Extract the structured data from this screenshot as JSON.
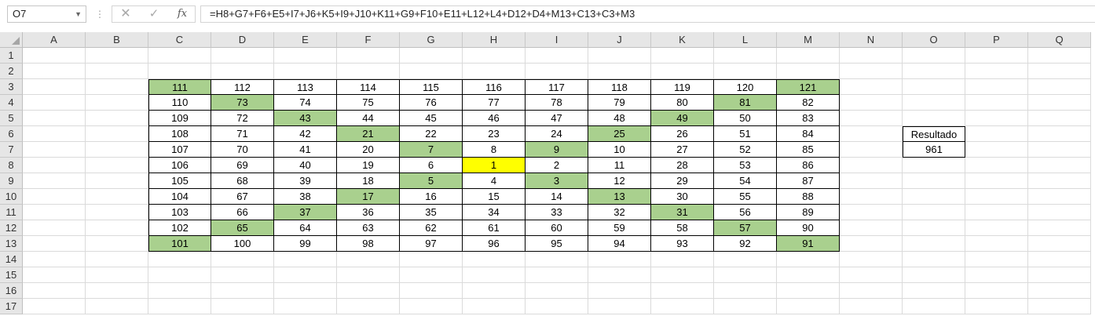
{
  "formula_bar": {
    "name_box": "O7",
    "cancel_glyph": "✕",
    "enter_glyph": "✓",
    "fx_label": "fx",
    "formula": "=H8+G7+F6+E5+I7+J6+K5+I9+J10+K11+G9+F10+E11+L12+L4+D12+D4+M13+C13+C3+M3"
  },
  "columns": [
    "A",
    "B",
    "C",
    "D",
    "E",
    "F",
    "G",
    "H",
    "I",
    "J",
    "K",
    "L",
    "M",
    "N",
    "O",
    "P",
    "Q"
  ],
  "rows": [
    "1",
    "2",
    "3",
    "4",
    "5",
    "6",
    "7",
    "8",
    "9",
    "10",
    "11",
    "12",
    "13",
    "14",
    "15",
    "16",
    "17"
  ],
  "table": {
    "rows": [
      [
        "111",
        "112",
        "113",
        "114",
        "115",
        "116",
        "117",
        "118",
        "119",
        "120",
        "121"
      ],
      [
        "110",
        "73",
        "74",
        "75",
        "76",
        "77",
        "78",
        "79",
        "80",
        "81",
        "82"
      ],
      [
        "109",
        "72",
        "43",
        "44",
        "45",
        "46",
        "47",
        "48",
        "49",
        "50",
        "83"
      ],
      [
        "108",
        "71",
        "42",
        "21",
        "22",
        "23",
        "24",
        "25",
        "26",
        "51",
        "84"
      ],
      [
        "107",
        "70",
        "41",
        "20",
        "7",
        "8",
        "9",
        "10",
        "27",
        "52",
        "85"
      ],
      [
        "106",
        "69",
        "40",
        "19",
        "6",
        "1",
        "2",
        "11",
        "28",
        "53",
        "86"
      ],
      [
        "105",
        "68",
        "39",
        "18",
        "5",
        "4",
        "3",
        "12",
        "29",
        "54",
        "87"
      ],
      [
        "104",
        "67",
        "38",
        "17",
        "16",
        "15",
        "14",
        "13",
        "30",
        "55",
        "88"
      ],
      [
        "103",
        "66",
        "37",
        "36",
        "35",
        "34",
        "33",
        "32",
        "31",
        "56",
        "89"
      ],
      [
        "102",
        "65",
        "64",
        "63",
        "62",
        "61",
        "60",
        "59",
        "58",
        "57",
        "90"
      ],
      [
        "101",
        "100",
        "99",
        "98",
        "97",
        "96",
        "95",
        "94",
        "93",
        "92",
        "91"
      ]
    ],
    "green": [
      "C3",
      "M3",
      "D4",
      "L4",
      "E5",
      "K5",
      "F6",
      "J6",
      "G7",
      "I7",
      "G9",
      "I9",
      "F10",
      "J10",
      "E11",
      "K11",
      "D12",
      "L12",
      "C13",
      "M13"
    ],
    "yellow": [
      "H8"
    ],
    "highlight_green": "#a9d08e",
    "highlight_yellow": "#ffff00"
  },
  "result": {
    "label": "Resultado",
    "value": "961"
  },
  "selected_cell": "O7"
}
